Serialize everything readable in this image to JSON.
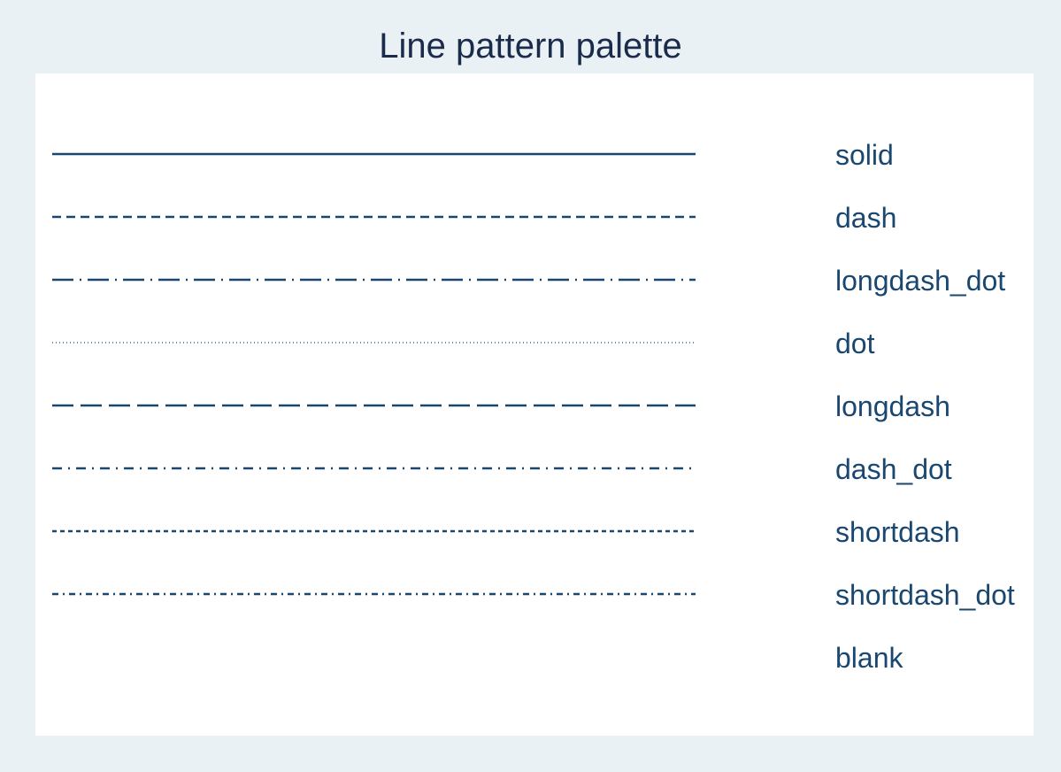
{
  "title": "Line pattern palette",
  "line_color": "#1a476f",
  "patterns": [
    {
      "name": "solid",
      "dasharray": "none"
    },
    {
      "name": "dash",
      "dasharray": "10 6"
    },
    {
      "name": "longdash_dot",
      "dasharray": "24 7 2 7"
    },
    {
      "name": "dot",
      "dasharray": "1 3"
    },
    {
      "name": "longdash",
      "dasharray": "24 8"
    },
    {
      "name": "dash_dot",
      "dasharray": "11 7 2 7"
    },
    {
      "name": "shortdash",
      "dasharray": "5 4"
    },
    {
      "name": "shortdash_dot",
      "dasharray": "7 5 2 5"
    },
    {
      "name": "blank",
      "dasharray": "blank"
    }
  ]
}
